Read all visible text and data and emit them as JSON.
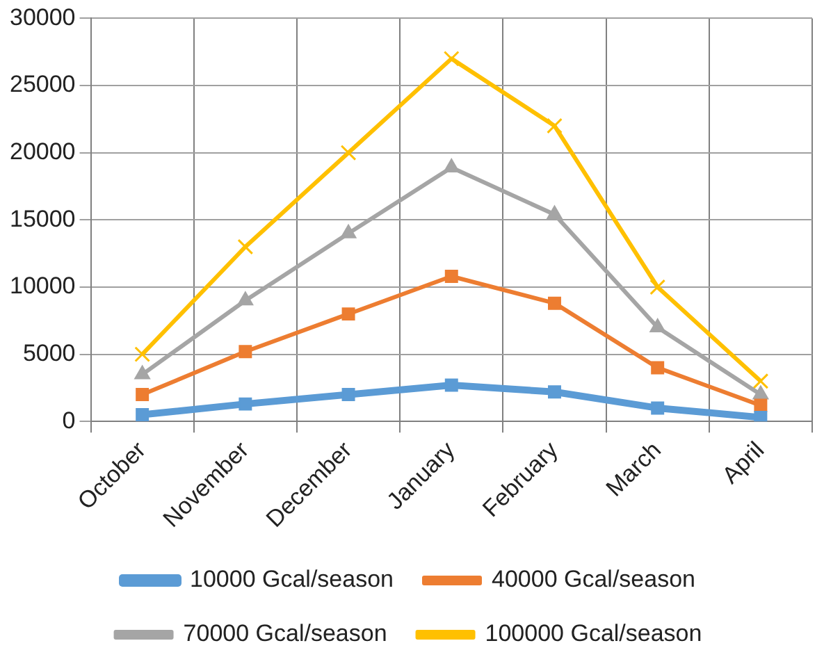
{
  "chart_data": {
    "type": "line",
    "categories": [
      "October",
      "November",
      "December",
      "January",
      "February",
      "March",
      "April"
    ],
    "series": [
      {
        "name": "10000 Gcal/season",
        "color": "#5b9bd5",
        "marker": "square",
        "values": [
          500,
          1300,
          2000,
          2700,
          2200,
          1000,
          300
        ]
      },
      {
        "name": "40000 Gcal/season",
        "color": "#ed7d31",
        "marker": "square",
        "values": [
          2000,
          5200,
          8000,
          10800,
          8800,
          4000,
          1200
        ]
      },
      {
        "name": "70000 Gcal/season",
        "color": "#a5a5a5",
        "marker": "triangle",
        "values": [
          3500,
          9000,
          14000,
          18900,
          15400,
          7000,
          2000
        ]
      },
      {
        "name": "100000 Gcal/season",
        "color": "#ffc000",
        "marker": "cross",
        "values": [
          5000,
          13000,
          20000,
          27000,
          22000,
          10000,
          3000
        ]
      }
    ],
    "ylim": [
      0,
      30000
    ],
    "yticks": [
      0,
      5000,
      10000,
      15000,
      20000,
      25000,
      30000
    ],
    "grid": true,
    "legend": "bottom",
    "line_style": "solid"
  }
}
